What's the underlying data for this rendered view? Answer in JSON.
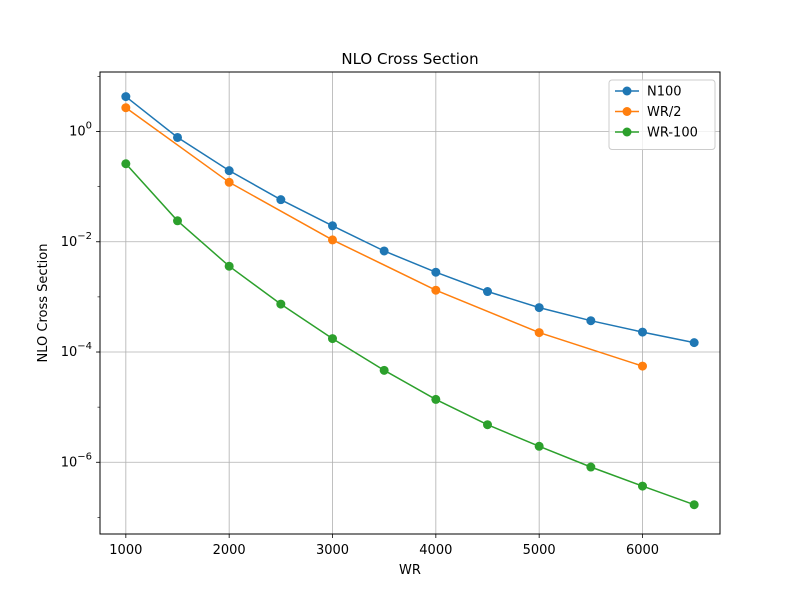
{
  "chart_data": {
    "type": "line",
    "title": "NLO Cross Section",
    "xlabel": "WR",
    "ylabel": "NLO Cross Section",
    "yscale": "log",
    "grid": true,
    "legend_position": "top-right",
    "xlim": [
      750,
      6750
    ],
    "ylim": [
      5e-08,
      12
    ],
    "x_ticks": [
      1000,
      2000,
      3000,
      4000,
      5000,
      6000
    ],
    "y_ticks": [
      {
        "value": 1e-06,
        "base": "10",
        "exp": "−6"
      },
      {
        "value": 0.0001,
        "base": "10",
        "exp": "−4"
      },
      {
        "value": 0.01,
        "base": "10",
        "exp": "−2"
      },
      {
        "value": 1,
        "base": "10",
        "exp": "0"
      }
    ],
    "series": [
      {
        "name": "N100",
        "color": "#1f77b4",
        "x": [
          1000,
          1500,
          2000,
          2500,
          3000,
          3500,
          4000,
          4500,
          5000,
          5500,
          6000,
          6500
        ],
        "y": [
          4.3,
          0.78,
          0.195,
          0.058,
          0.0195,
          0.0068,
          0.0028,
          0.00125,
          0.00064,
          0.00037,
          0.00023,
          0.000148
        ]
      },
      {
        "name": "WR/2",
        "color": "#ff7f0e",
        "x": [
          1000,
          2000,
          3000,
          4000,
          5000,
          6000
        ],
        "y": [
          2.7,
          0.12,
          0.0108,
          0.00132,
          0.000225,
          5.55e-05
        ]
      },
      {
        "name": "WR-100",
        "color": "#2ca02c",
        "x": [
          1000,
          1500,
          2000,
          2500,
          3000,
          3500,
          4000,
          4500,
          5000,
          5500,
          6000,
          6500
        ],
        "y": [
          0.26,
          0.024,
          0.0036,
          0.00074,
          0.000175,
          4.65e-05,
          1.38e-05,
          4.8e-06,
          1.95e-06,
          8.2e-07,
          3.7e-07,
          1.7e-07
        ]
      }
    ]
  }
}
